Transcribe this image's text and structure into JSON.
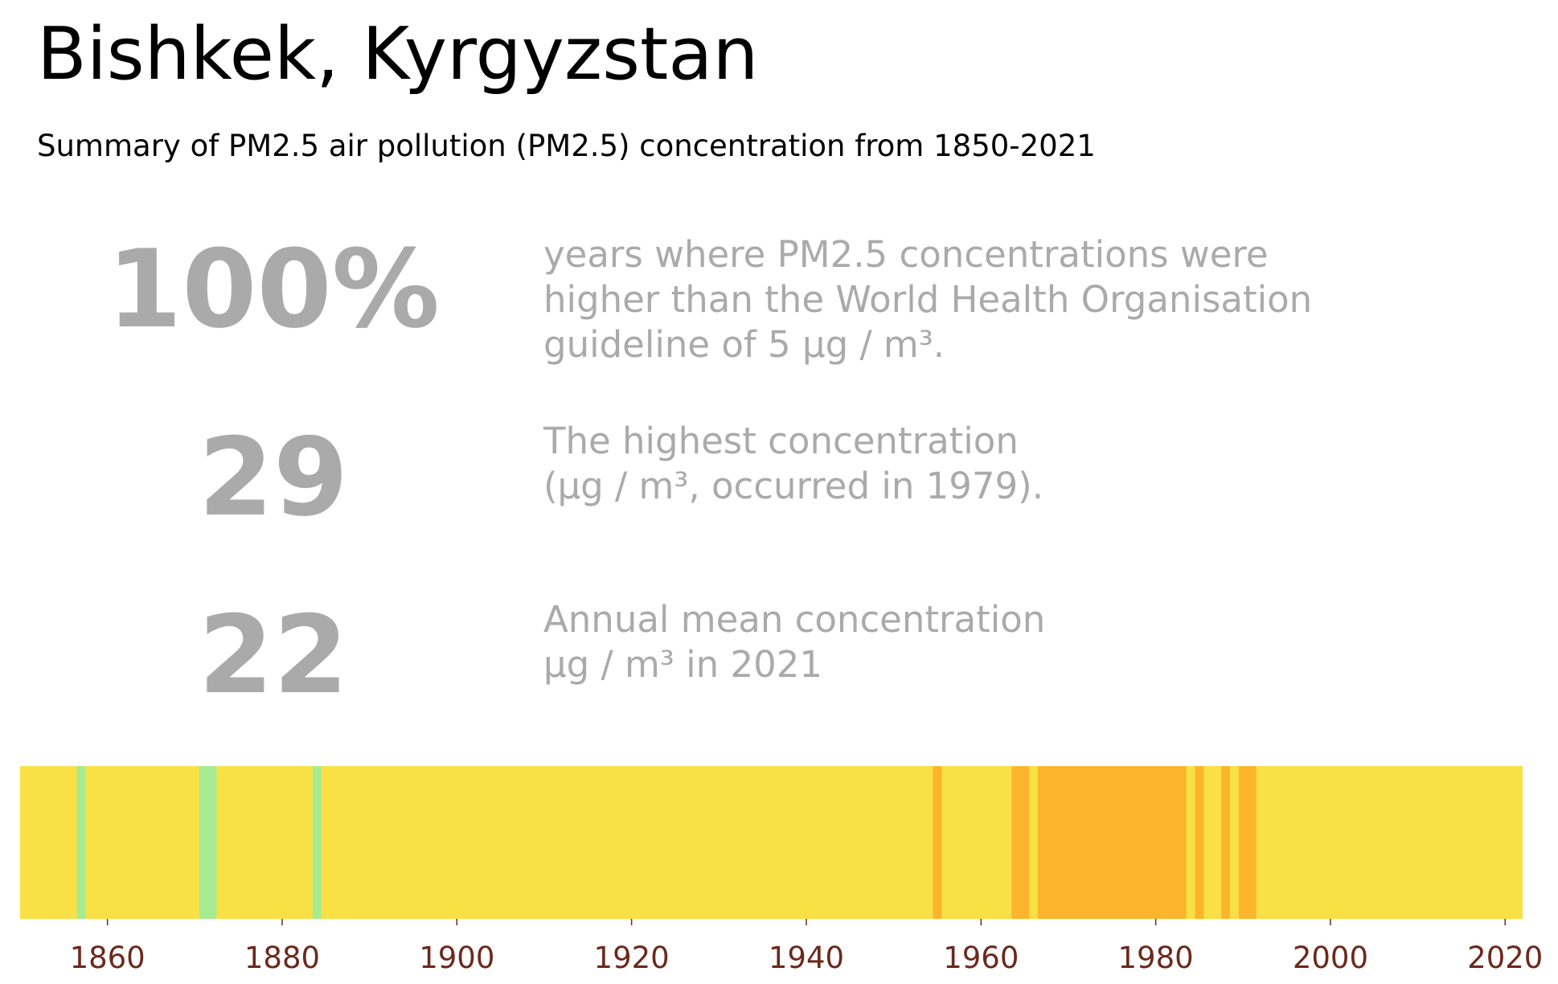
{
  "title": "Bishkek, Kyrgyzstan",
  "subtitle": "Summary of PM2.5 air pollution (PM2.5) concentration from 1850-2021",
  "stats": [
    {
      "value": "100%",
      "lines": [
        "years where PM2.5 concentrations were",
        "higher than the World Health Organisation",
        "guideline of 5 µg / m³."
      ]
    },
    {
      "value": "29",
      "lines": [
        "The highest concentration",
        "(µg / m³, occurred in 1979)."
      ]
    },
    {
      "value": "22",
      "lines": [
        "Annual mean concentration",
        "µg / m³ in 2021"
      ]
    }
  ],
  "chart_data": {
    "type": "heatmap",
    "x_range": [
      1850,
      2022
    ],
    "x_ticks": [
      1860,
      1880,
      1900,
      1920,
      1940,
      1960,
      1980,
      2000,
      2020
    ],
    "colors": {
      "green": "#a6eb8f",
      "yellow": "#f8e045",
      "orange": "#fdb42d",
      "tick_label": "#6b2a1c"
    },
    "default_band": "yellow",
    "bands": [
      {
        "start": 1856.5,
        "end": 1857.5,
        "color": "green"
      },
      {
        "start": 1870.5,
        "end": 1872.5,
        "color": "green"
      },
      {
        "start": 1883.5,
        "end": 1884.5,
        "color": "green"
      },
      {
        "start": 1954.5,
        "end": 1955.5,
        "color": "orange"
      },
      {
        "start": 1963.5,
        "end": 1965.5,
        "color": "orange"
      },
      {
        "start": 1966.5,
        "end": 1983.5,
        "color": "orange"
      },
      {
        "start": 1984.5,
        "end": 1985.5,
        "color": "orange"
      },
      {
        "start": 1987.5,
        "end": 1988.5,
        "color": "orange"
      },
      {
        "start": 1989.5,
        "end": 1991.5,
        "color": "orange"
      }
    ]
  }
}
